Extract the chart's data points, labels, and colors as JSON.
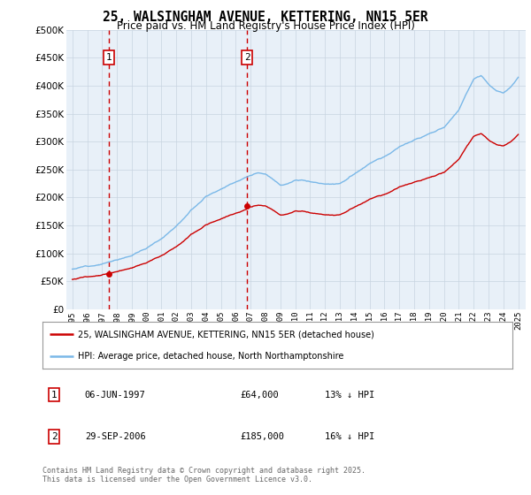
{
  "title": "25, WALSINGHAM AVENUE, KETTERING, NN15 5ER",
  "subtitle": "Price paid vs. HM Land Registry's House Price Index (HPI)",
  "legend_line1": "25, WALSINGHAM AVENUE, KETTERING, NN15 5ER (detached house)",
  "legend_line2": "HPI: Average price, detached house, North Northamptonshire",
  "footnote": "Contains HM Land Registry data © Crown copyright and database right 2025.\nThis data is licensed under the Open Government Licence v3.0.",
  "transaction1_date": "06-JUN-1997",
  "transaction1_price": "£64,000",
  "transaction1_hpi": "13% ↓ HPI",
  "transaction2_date": "29-SEP-2006",
  "transaction2_price": "£185,000",
  "transaction2_hpi": "16% ↓ HPI",
  "transaction1_x": 1997.44,
  "transaction1_y": 64000,
  "transaction2_x": 2006.75,
  "transaction2_y": 185000,
  "hpi_color": "#7ab8e8",
  "price_color": "#cc0000",
  "plot_bg_color": "#e8f0f8",
  "grid_color": "#c8d4e0",
  "ylim": [
    0,
    500000
  ],
  "xlim_start": 1994.6,
  "xlim_end": 2025.5,
  "yticks": [
    0,
    50000,
    100000,
    150000,
    200000,
    250000,
    300000,
    350000,
    400000,
    450000,
    500000
  ],
  "xticks": [
    1995,
    1996,
    1997,
    1998,
    1999,
    2000,
    2001,
    2002,
    2003,
    2004,
    2005,
    2006,
    2007,
    2008,
    2009,
    2010,
    2011,
    2012,
    2013,
    2014,
    2015,
    2016,
    2017,
    2018,
    2019,
    2020,
    2021,
    2022,
    2023,
    2024,
    2025
  ]
}
